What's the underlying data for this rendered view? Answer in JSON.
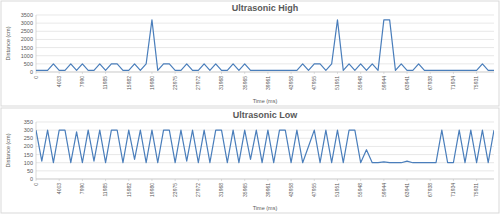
{
  "chart_data": [
    {
      "type": "line",
      "title": "Ultrasonic High",
      "x_label": "Time (ms)",
      "y_label": "Distance (cm)",
      "categories": [
        "0",
        null,
        null,
        null,
        "4003",
        null,
        null,
        null,
        "7990",
        null,
        null,
        null,
        "11985",
        null,
        null,
        null,
        "15982",
        null,
        null,
        null,
        "19980",
        null,
        null,
        null,
        "23975",
        null,
        null,
        null,
        "27972",
        null,
        null,
        null,
        "31968",
        null,
        null,
        null,
        "35965",
        null,
        null,
        null,
        "39961",
        null,
        null,
        null,
        "43958",
        null,
        null,
        null,
        "47955",
        null,
        null,
        null,
        "51951",
        null,
        null,
        null,
        "55948",
        null,
        null,
        null,
        "59944",
        null,
        null,
        null,
        "63941",
        null,
        null,
        null,
        "67938",
        null,
        null,
        null,
        "71934",
        null,
        null,
        null,
        "75931",
        null,
        null,
        null
      ],
      "values": [
        100,
        100,
        100,
        500,
        100,
        100,
        500,
        100,
        500,
        100,
        100,
        500,
        100,
        500,
        500,
        100,
        100,
        500,
        100,
        500,
        3200,
        100,
        500,
        500,
        100,
        100,
        500,
        100,
        100,
        500,
        100,
        500,
        100,
        100,
        500,
        100,
        500,
        100,
        100,
        100,
        100,
        100,
        100,
        100,
        100,
        100,
        500,
        100,
        500,
        500,
        100,
        500,
        3200,
        100,
        500,
        100,
        500,
        100,
        500,
        100,
        3200,
        3200,
        100,
        500,
        100,
        100,
        500,
        100,
        100,
        100,
        100,
        100,
        100,
        100,
        100,
        100,
        100,
        500,
        100,
        100
      ],
      "color": "#4a7ebb",
      "ylim": [
        0,
        3500
      ],
      "yticks": [
        0,
        500,
        1000,
        1500,
        2000,
        2500,
        3000,
        3500
      ],
      "grid": true
    },
    {
      "type": "line",
      "title": "Ultrasonic Low",
      "x_label": "Time (ms)",
      "y_label": "Distance (cm)",
      "categories": [
        "0",
        null,
        null,
        null,
        "4003",
        null,
        null,
        null,
        "7990",
        null,
        null,
        null,
        "11985",
        null,
        null,
        null,
        "15982",
        null,
        null,
        null,
        "19980",
        null,
        null,
        null,
        "23975",
        null,
        null,
        null,
        "27972",
        null,
        null,
        null,
        "31968",
        null,
        null,
        null,
        "35965",
        null,
        null,
        null,
        "39961",
        null,
        null,
        null,
        "43958",
        null,
        null,
        null,
        "47955",
        null,
        null,
        null,
        "51951",
        null,
        null,
        null,
        "55948",
        null,
        null,
        null,
        "59944",
        null,
        null,
        null,
        "63941",
        null,
        null,
        null,
        "67938",
        null,
        null,
        null,
        "71934",
        null,
        null,
        null,
        "75931",
        null,
        null,
        null
      ],
      "values": [
        300,
        110,
        300,
        100,
        300,
        300,
        100,
        290,
        100,
        300,
        110,
        300,
        100,
        300,
        300,
        100,
        300,
        120,
        300,
        100,
        300,
        100,
        300,
        300,
        100,
        300,
        110,
        300,
        100,
        300,
        100,
        300,
        300,
        100,
        300,
        100,
        300,
        120,
        300,
        100,
        300,
        100,
        300,
        300,
        100,
        300,
        100,
        200,
        300,
        100,
        300,
        100,
        300,
        100,
        300,
        300,
        100,
        180,
        100,
        100,
        105,
        100,
        100,
        100,
        110,
        100,
        100,
        100,
        100,
        100,
        300,
        100,
        100,
        300,
        100,
        300,
        100,
        300,
        100,
        300
      ],
      "color": "#4a7ebb",
      "ylim": [
        0,
        350
      ],
      "yticks": [
        0,
        50,
        100,
        150,
        200,
        250,
        300,
        350
      ],
      "grid": true
    }
  ]
}
